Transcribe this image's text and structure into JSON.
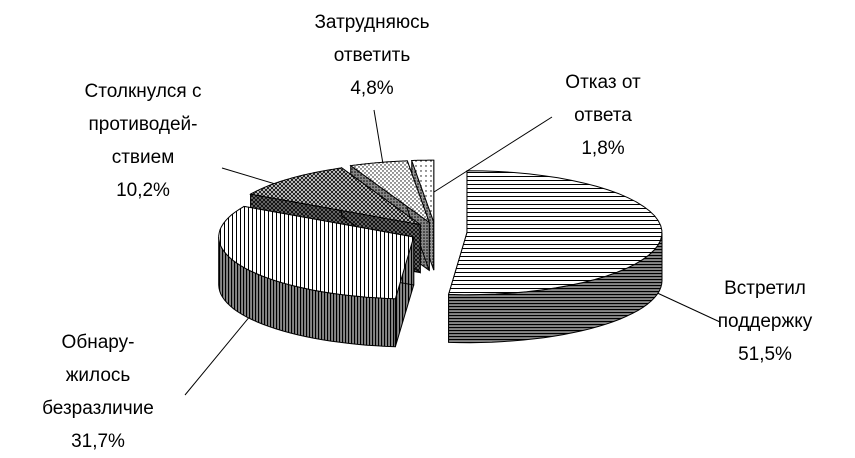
{
  "chart_data": {
    "type": "pie3d",
    "categories": [
      [
        "Встретил",
        "поддержку"
      ],
      [
        "Обнару-",
        "жилось",
        "безразличие"
      ],
      [
        "Столкнулся с",
        "противодей-",
        "ствием"
      ],
      [
        "Затрудняюсь",
        "ответить"
      ],
      [
        "Отказ от",
        "ответа"
      ]
    ],
    "values": [
      51.5,
      31.7,
      10.2,
      4.8,
      1.8
    ],
    "value_labels": [
      "51,5%",
      "31,7%",
      "10,2%",
      "4,8%",
      "1,8%"
    ]
  }
}
